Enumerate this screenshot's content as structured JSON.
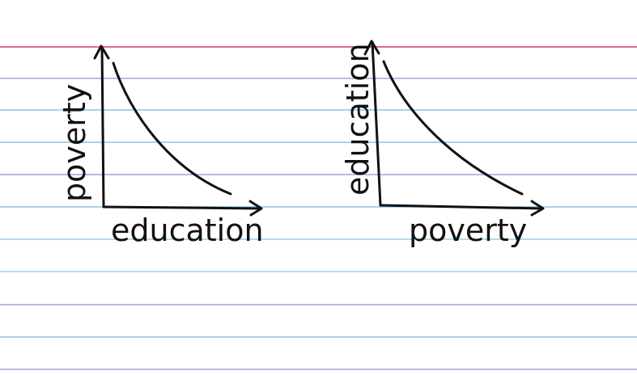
{
  "paper": {
    "line_colors": {
      "top_margin_line": "#e2649b",
      "ruled_lines": [
        "#8cc4e8",
        "#b79ad8",
        "#9fcde8"
      ]
    }
  },
  "diagrams": [
    {
      "y_axis_label": "poverty",
      "x_axis_label": "education",
      "curve": "decreasing"
    },
    {
      "y_axis_label": "education",
      "x_axis_label": "poverty",
      "curve": "decreasing"
    }
  ],
  "ink_color": "#111111"
}
